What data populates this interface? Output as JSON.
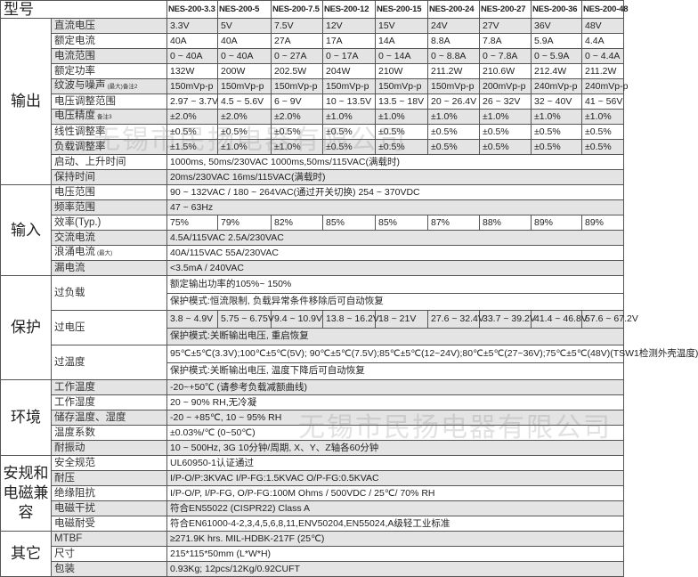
{
  "title": "型号",
  "models": [
    "NES-200-3.3",
    "NES-200-5",
    "NES-200-7.5",
    "NES-200-12",
    "NES-200-15",
    "NES-200-24",
    "NES-200-27",
    "NES-200-36",
    "NES-200-48"
  ],
  "watermark": "无锡市民扬电器有限公司",
  "sections": [
    {
      "name": "输出",
      "rows": [
        {
          "label": "直流电压",
          "values": [
            "3.3V",
            "5V",
            "7.5V",
            "12V",
            "15V",
            "24V",
            "27V",
            "36V",
            "48V"
          ],
          "shade": true
        },
        {
          "label": "额定电流",
          "values": [
            "40A",
            "40A",
            "27A",
            "17A",
            "14A",
            "8.8A",
            "7.8A",
            "5.9A",
            "4.4A"
          ]
        },
        {
          "label": "电流范围",
          "values": [
            "0 ~ 40A",
            "0 ~ 40A",
            "0 ~ 27A",
            "0 ~ 17A",
            "0 ~ 14A",
            "0 ~ 8.8A",
            "0 ~ 7.8A",
            "0 ~ 5.9A",
            "0 ~ 4.4A"
          ],
          "shade": true
        },
        {
          "label": "额定功率",
          "values": [
            "132W",
            "200W",
            "202.5W",
            "204W",
            "210W",
            "211.2W",
            "210.6W",
            "212.4W",
            "211.2W"
          ]
        },
        {
          "label": "纹波与噪声",
          "note": "(最大)备注2",
          "values": [
            "150mVp-p",
            "150mVp-p",
            "150mVp-p",
            "150mVp-p",
            "150mVp-p",
            "150mVp-p",
            "200mVp-p",
            "240mVp-p",
            "240mVp-p"
          ],
          "shade": true
        },
        {
          "label": "电压调整范围",
          "values": [
            "2.97 ~ 3.7V",
            "4.5 ~ 5.6V",
            "6 ~ 9V",
            "10 ~ 13.5V",
            "13.5 ~ 18V",
            "20 ~ 26.4V",
            "26 ~ 32V",
            "32 ~ 40V",
            "41 ~ 56V"
          ]
        },
        {
          "label": "电压精度",
          "note": "备注3",
          "values": [
            "±2.0%",
            "±2.0%",
            "±2.0%",
            "±1.0%",
            "±1.0%",
            "±1.0%",
            "±1.0%",
            "±1.0%",
            "±1.0%"
          ],
          "shade": true
        },
        {
          "label": "线性调整率",
          "values": [
            "±0.5%",
            "±0.5%",
            "±0.5%",
            "±0.5%",
            "±0.5%",
            "±0.5%",
            "±0.5%",
            "±0.5%",
            "±0.5%"
          ]
        },
        {
          "label": "负载调整率",
          "values": [
            "±1.5%",
            "±1.0%",
            "±1.0%",
            "±0.5%",
            "±0.5%",
            "±0.5%",
            "±0.5%",
            "±0.5%",
            "±0.5%"
          ],
          "shade": true
        },
        {
          "label": "启动、上升时间",
          "text": "1000ms, 50ms/230VAC        1000ms,50ms/115VAC(满载时)"
        },
        {
          "label": "保持时间",
          "text": "20ms/230VAC    16ms/115VAC(满载时)",
          "shade": true
        }
      ]
    },
    {
      "name": "输入",
      "rows": [
        {
          "label": "电压范围",
          "text": "90 ~ 132VAC / 180 ~ 264VAC(通过开关切换)           254 ~ 370VDC"
        },
        {
          "label": "频率范围",
          "text": "47 ~ 63Hz",
          "shade": true
        },
        {
          "label": "效率(Typ.)",
          "values": [
            "75%",
            "79%",
            "82%",
            "85%",
            "85%",
            "87%",
            "88%",
            "89%",
            "89%"
          ]
        },
        {
          "label": "交流电流",
          "text": "4.5A/115VAC        2.5A/230VAC",
          "shade": true
        },
        {
          "label": "浪涌电流",
          "note": "(最大)",
          "text": "40A/115VAC         55A/230VAC"
        },
        {
          "label": "漏电流",
          "text": "<3.5mA / 240VAC",
          "shade": true
        }
      ]
    },
    {
      "name": "保护",
      "rows": [
        {
          "label": "过负载",
          "sub": [
            {
              "text": "额定输出功率的105%~ 150%"
            },
            {
              "text": "保护模式:恒流限制, 负载异常条件移除后可自动恢复"
            }
          ]
        },
        {
          "label": "过电压",
          "sub": [
            {
              "values": [
                "3.8 ~ 4.9V",
                "5.75 ~ 6.75V",
                "9.4 ~ 10.9V",
                "13.8 ~ 16.2V",
                "18 ~ 21V",
                "27.6 ~ 32.4V",
                "33.7 ~ 39.2V",
                "41.4 ~ 46.8V",
                "57.6 ~ 67.2V"
              ],
              "shade": true
            },
            {
              "text": "保护模式:关断输出电压, 重启恢复",
              "shade": true
            }
          ]
        },
        {
          "label": "过温度",
          "sub": [
            {
              "text": "95℃±5℃(3.3V);100℃±5℃(5V); 90℃±5℃(7.5V);85℃±5℃(12~24V);80℃±5℃(27~36V);75℃±5℃(48V)(TSW1检测外壳温度)"
            },
            {
              "text": "保护模式:关断输出电压, 温度下降后可自动恢复"
            }
          ]
        }
      ]
    },
    {
      "name": "环境",
      "rows": [
        {
          "label": "工作温度",
          "text": "-20~+50℃ (请参考负载减额曲线)",
          "shade": true
        },
        {
          "label": "工作湿度",
          "text": "20 ~ 90% RH,无冷凝"
        },
        {
          "label": "储存温度、湿度",
          "text": "-20 ~ +85℃, 10 ~ 95% RH",
          "shade": true
        },
        {
          "label": "温度系数",
          "text": "±0.03%/℃ (0~50℃)"
        },
        {
          "label": "耐振动",
          "text": "10 ~ 500Hz, 3G 10分钟/周期, X、Y、Z轴各60分钟",
          "shade": true
        }
      ]
    },
    {
      "name": "安规和电磁兼容",
      "rows": [
        {
          "label": "安全规范",
          "text": "UL60950-1认证通过"
        },
        {
          "label": "耐压",
          "text": "I/P-O/P:3KVAC    I/P-FG:1.5KVAC    O/P-FG:0.5KVAC",
          "shade": true
        },
        {
          "label": "绝缘阻抗",
          "text": "I/P-O/P, I/P-FG, O/P-FG:100M Ohms / 500VDC / 25℃/ 70% RH"
        },
        {
          "label": "电磁干扰",
          "text": "符合EN55022 (CISPR22) Class A",
          "shade": true
        },
        {
          "label": "电磁耐受",
          "text": "符合EN61000-4-2,3,4,5,6,8,11,ENV50204,EN55024,A级轻工业标准"
        }
      ]
    },
    {
      "name": "其它",
      "rows": [
        {
          "label": "MTBF",
          "text": "≥271.9K hrs.  MIL-HDBK-217F (25℃)",
          "shade": true
        },
        {
          "label": "尺寸",
          "text": "215*115*50mm (L*W*H)"
        },
        {
          "label": "包装",
          "text": "0.93Kg; 12pcs/12Kg/0.92CUFT",
          "shade": true
        }
      ]
    }
  ]
}
